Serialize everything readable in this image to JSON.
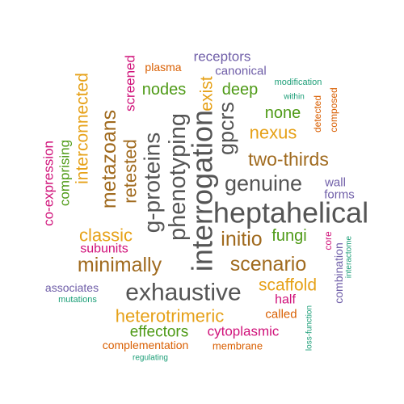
{
  "palette": {
    "grey": "#555555",
    "green": "#4e9a16",
    "orange": "#e6a118",
    "brown": "#a06a1e",
    "magenta": "#d0127a",
    "purple": "#6f5ea8",
    "teal": "#1b9e77",
    "rust": "#d95f02"
  },
  "words": [
    {
      "text": "heptahelical",
      "color": "grey"
    },
    {
      "text": "interrogation",
      "color": "grey"
    },
    {
      "text": "exhaustive",
      "color": "grey"
    },
    {
      "text": "phenotyping",
      "color": "grey"
    },
    {
      "text": "g-proteins",
      "color": "grey"
    },
    {
      "text": "genuine",
      "color": "grey"
    },
    {
      "text": "gpcrs",
      "color": "grey"
    },
    {
      "text": "metazoans",
      "color": "brown"
    },
    {
      "text": "scenario",
      "color": "brown"
    },
    {
      "text": "minimally",
      "color": "brown"
    },
    {
      "text": "two-thirds",
      "color": "brown"
    },
    {
      "text": "initio",
      "color": "brown"
    },
    {
      "text": "retested",
      "color": "brown"
    },
    {
      "text": "heterotrimeric",
      "color": "orange"
    },
    {
      "text": "interconnected",
      "color": "orange"
    },
    {
      "text": "nexus",
      "color": "orange"
    },
    {
      "text": "classic",
      "color": "orange"
    },
    {
      "text": "scaffold",
      "color": "orange"
    },
    {
      "text": "exist",
      "color": "orange"
    },
    {
      "text": "fungi",
      "color": "green"
    },
    {
      "text": "deep",
      "color": "green"
    },
    {
      "text": "none",
      "color": "green"
    },
    {
      "text": "nodes",
      "color": "green"
    },
    {
      "text": "comprising",
      "color": "green"
    },
    {
      "text": "effectors",
      "color": "green"
    },
    {
      "text": "co-expression",
      "color": "magenta"
    },
    {
      "text": "subunits",
      "color": "magenta"
    },
    {
      "text": "cytoplasmic",
      "color": "magenta"
    },
    {
      "text": "half",
      "color": "magenta"
    },
    {
      "text": "screened",
      "color": "magenta"
    },
    {
      "text": "core",
      "color": "magenta"
    },
    {
      "text": "receptors",
      "color": "purple"
    },
    {
      "text": "canonical",
      "color": "purple"
    },
    {
      "text": "forms",
      "color": "purple"
    },
    {
      "text": "wall",
      "color": "purple"
    },
    {
      "text": "associates",
      "color": "purple"
    },
    {
      "text": "combination",
      "color": "purple"
    },
    {
      "text": "called",
      "color": "rust"
    },
    {
      "text": "plasma",
      "color": "rust"
    },
    {
      "text": "complementation",
      "color": "rust"
    },
    {
      "text": "membrane",
      "color": "rust"
    },
    {
      "text": "detected",
      "color": "rust"
    },
    {
      "text": "composed",
      "color": "rust"
    },
    {
      "text": "modification",
      "color": "teal"
    },
    {
      "text": "within",
      "color": "teal"
    },
    {
      "text": "mutations",
      "color": "teal"
    },
    {
      "text": "regulating",
      "color": "teal"
    },
    {
      "text": "interactome",
      "color": "teal"
    },
    {
      "text": "loss-function",
      "color": "teal"
    }
  ]
}
